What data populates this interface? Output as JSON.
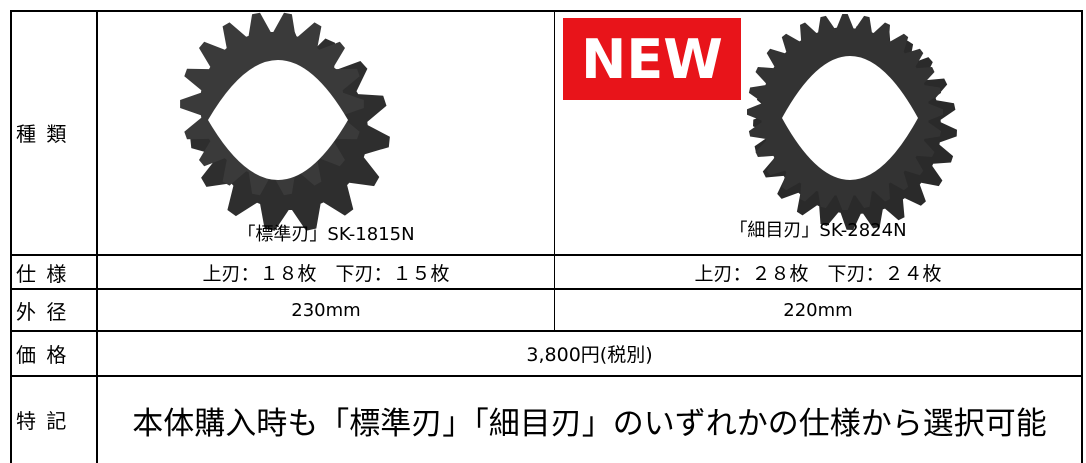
{
  "table": {
    "types": {
      "label": "種 類",
      "standard": {
        "caption": "「標準刃」SK-1815N"
      },
      "fine": {
        "badge": "NEW",
        "caption": "「細目刃」SK-2824N"
      }
    },
    "spec": {
      "label": "仕 様",
      "standard": "上刃：１８枚　下刃：１５枚",
      "fine": "上刃：２８枚　下刃：２４枚"
    },
    "diameter": {
      "label": "外 径",
      "standard": "230mm",
      "fine": "220mm"
    },
    "price": {
      "label": "価 格",
      "value": "3,800円(税別)"
    },
    "notes": {
      "label": "特 記",
      "value": "本体購入時も「標準刃」「細目刃」のいずれかの仕様から選択可能"
    }
  }
}
